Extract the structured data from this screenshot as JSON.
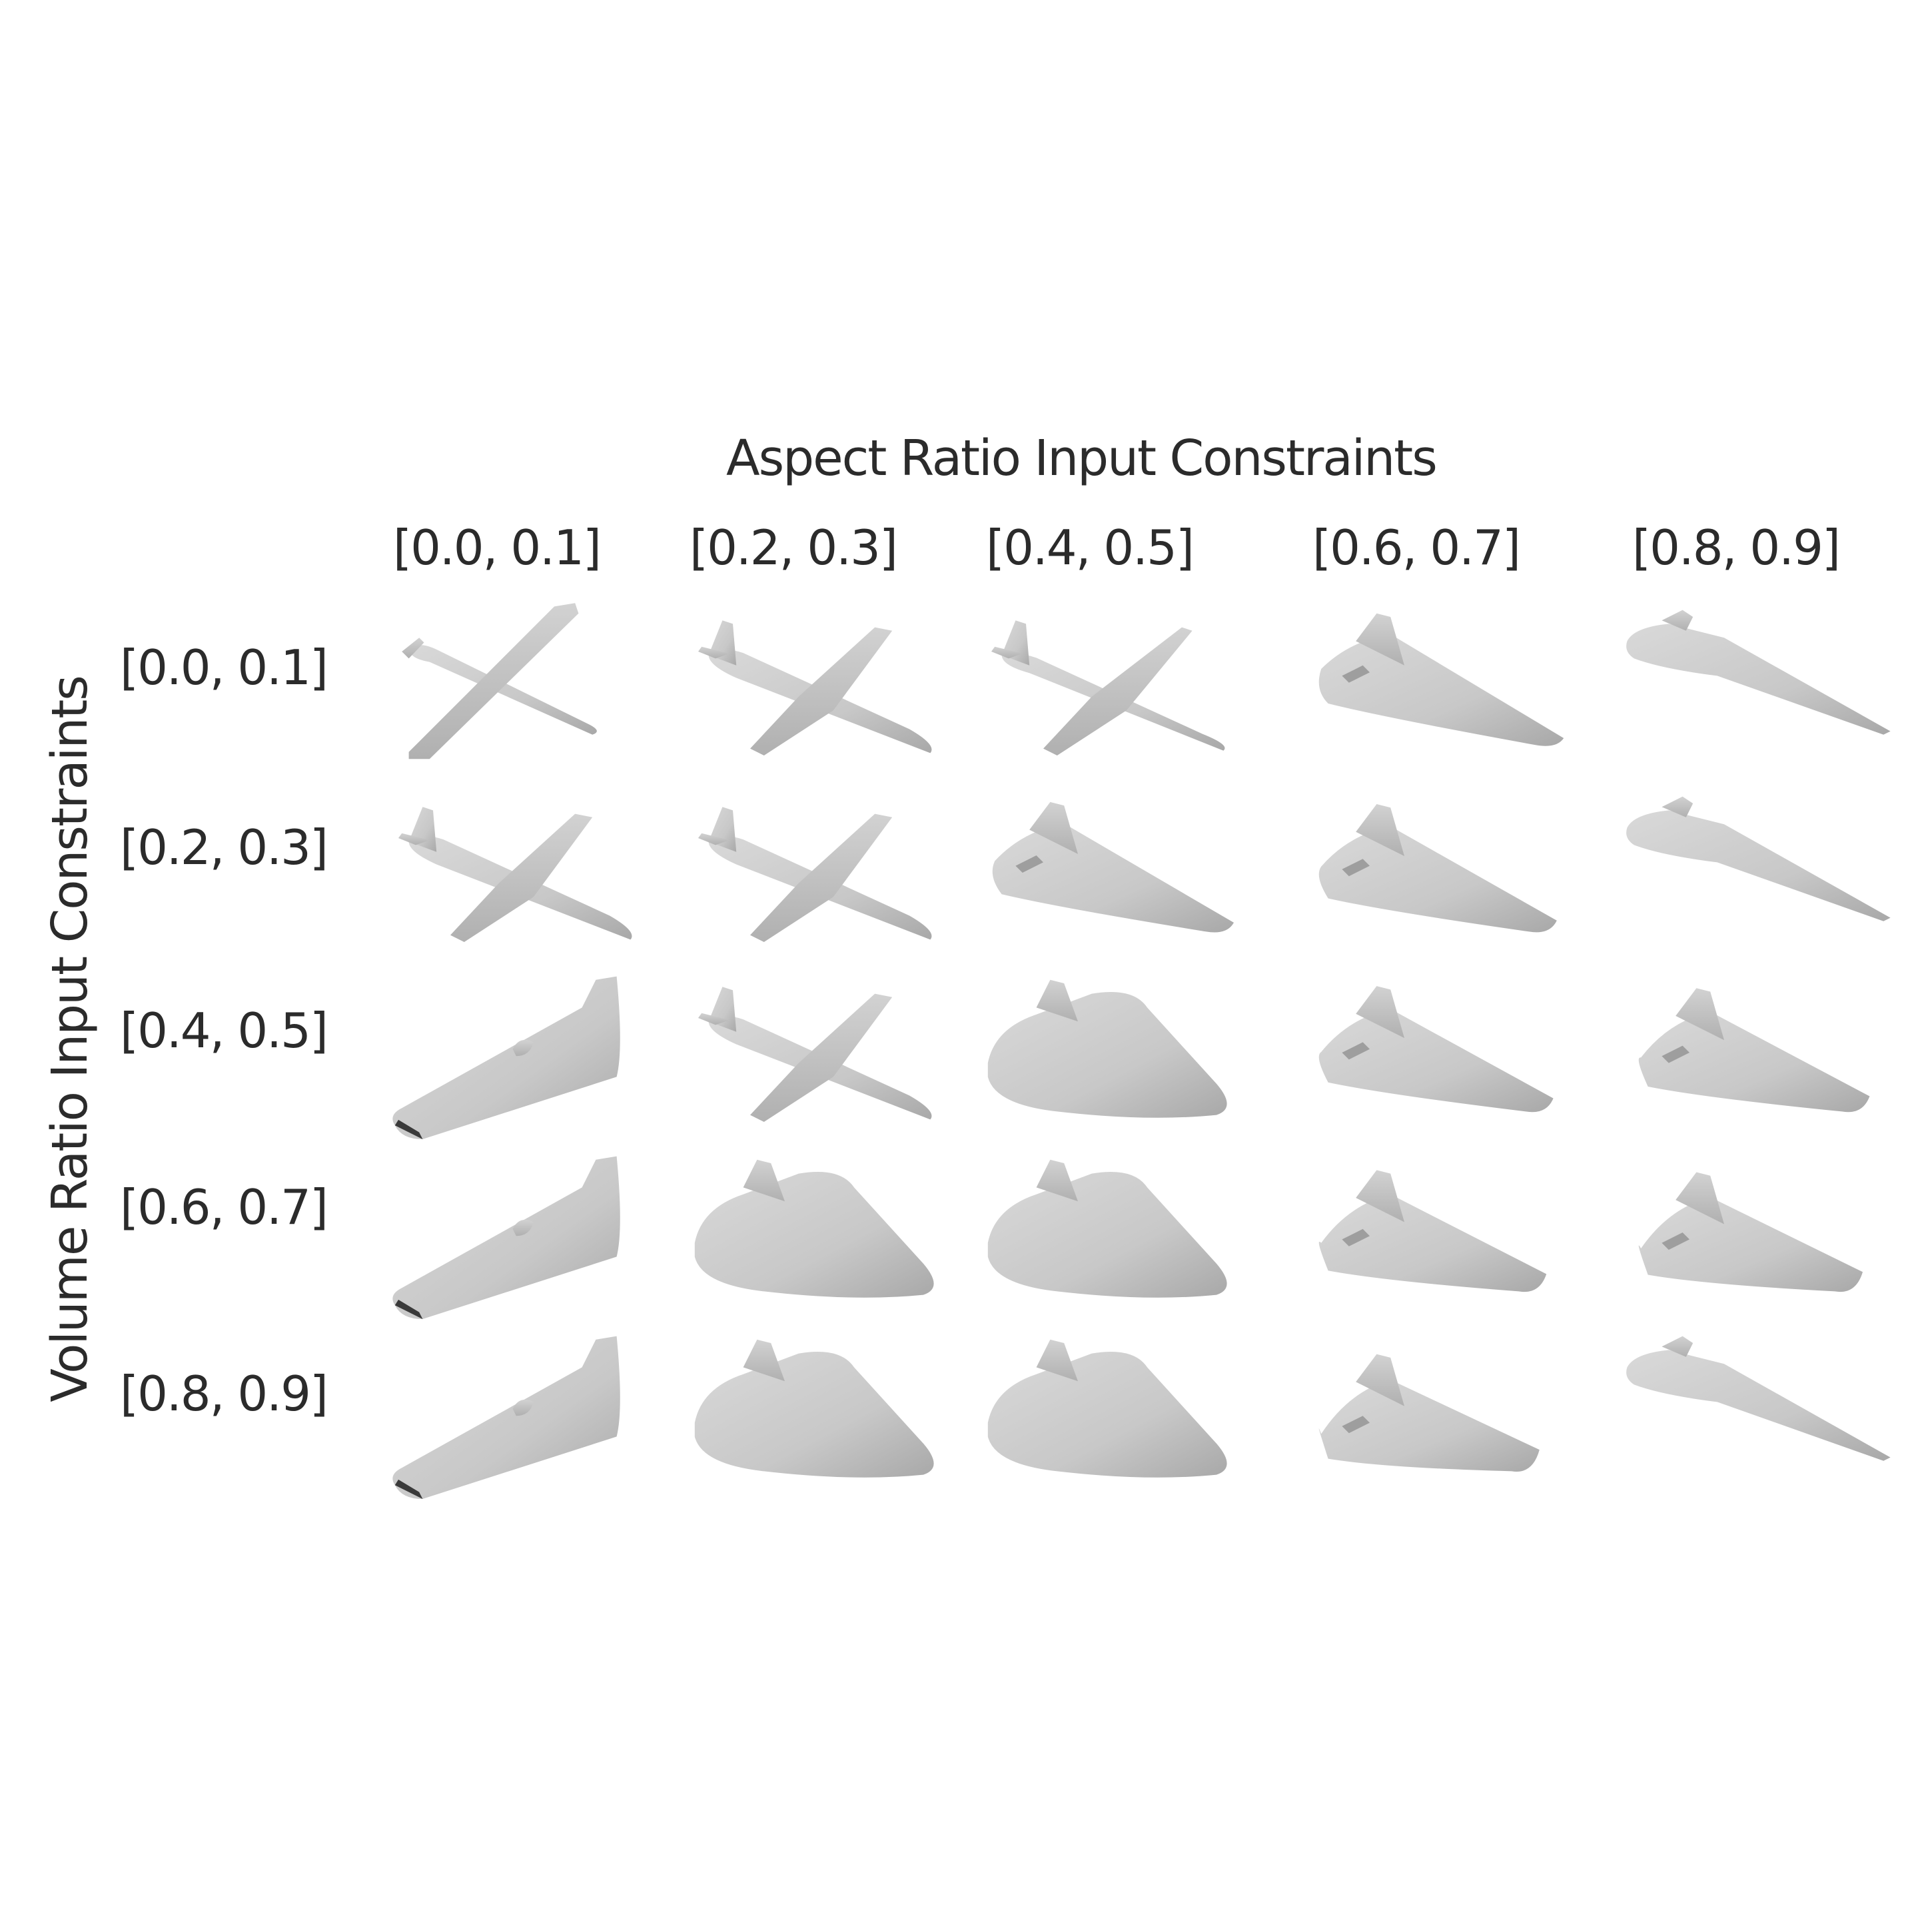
{
  "figure": {
    "top_title": "Aspect Ratio Input Constraints",
    "side_title": "Volume Ratio Input Constraints",
    "columns": [
      "[0.0, 0.1]",
      "[0.2, 0.3]",
      "[0.4, 0.5]",
      "[0.6, 0.7]",
      "[0.8, 0.9]"
    ],
    "rows": [
      "[0.0, 0.1]",
      "[0.2, 0.3]",
      "[0.4, 0.5]",
      "[0.6, 0.7]",
      "[0.8, 0.9]"
    ],
    "cell_content": "generated-aircraft-render",
    "render_color": "#c8c8c8"
  }
}
